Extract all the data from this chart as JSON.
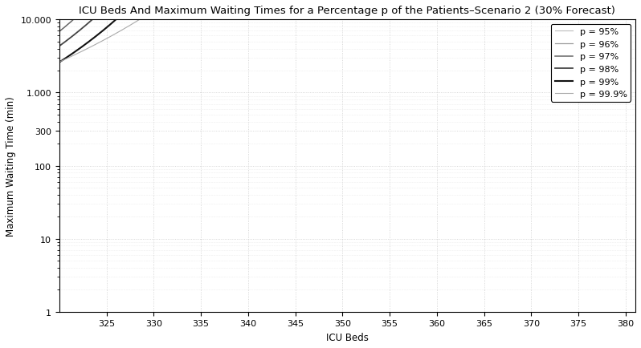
{
  "title": "ICU Beds And Maximum Waiting Times for a Percentage p of the Patients–Scenario 2 (30% Forecast)",
  "xlabel": "ICU Beds",
  "ylabel": "Maximum Waiting Time (min)",
  "xlim": [
    320,
    381
  ],
  "ylim": [
    1,
    10000
  ],
  "xticks": [
    325,
    330,
    335,
    340,
    345,
    350,
    355,
    360,
    365,
    370,
    375,
    380
  ],
  "series": [
    {
      "label": "p = 95%",
      "color": "#bbbbbb",
      "linewidth": 0.8,
      "n_max": 352.5,
      "k": 140
    },
    {
      "label": "p = 96%",
      "color": "#999999",
      "linewidth": 0.9,
      "n_max": 354.5,
      "k": 140
    },
    {
      "label": "p = 97%",
      "color": "#666666",
      "linewidth": 1.1,
      "n_max": 356.5,
      "k": 140
    },
    {
      "label": "p = 98%",
      "color": "#444444",
      "linewidth": 1.3,
      "n_max": 358.5,
      "k": 140
    },
    {
      "label": "p = 99%",
      "color": "#111111",
      "linewidth": 1.5,
      "n_max": 361.0,
      "k": 140
    },
    {
      "label": "p = 99.9%",
      "color": "#aaaaaa",
      "linewidth": 0.8,
      "n_max": 378.5,
      "k": 200
    }
  ],
  "grid_color": "#cccccc",
  "background_color": "#ffffff",
  "legend_fontsize": 8,
  "title_fontsize": 9.5,
  "axis_fontsize": 8.5
}
